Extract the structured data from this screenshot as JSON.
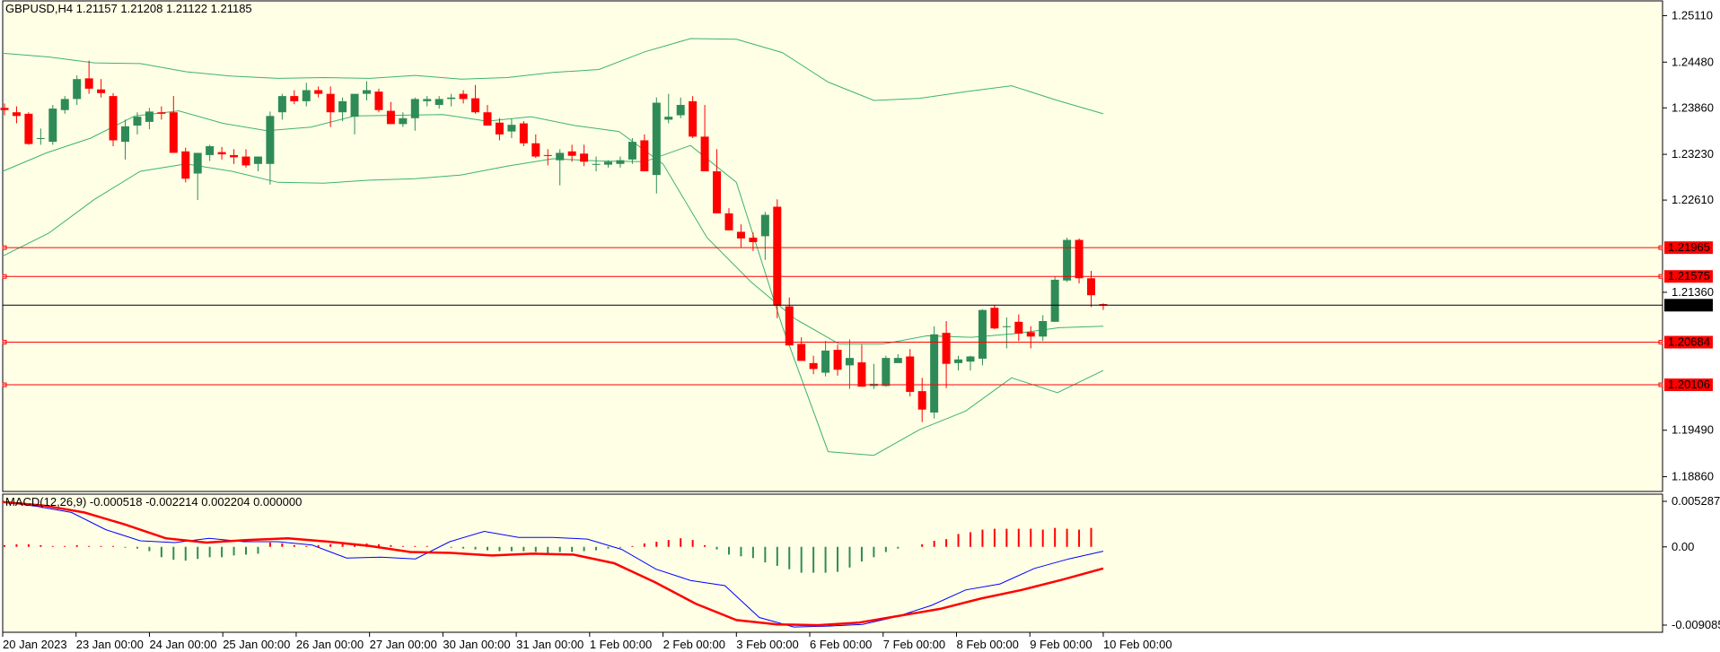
{
  "header": {
    "symbol_info": "GBPUSD,H4  1.21157 1.21208 1.21122 1.21185"
  },
  "macd_header": {
    "text": "MACD(12,26,9) -0.000518 -0.002214 0.002204 0.000000"
  },
  "colors": {
    "background": "#FFFFE6",
    "bull": "#2E8B57",
    "bear": "#FF0000",
    "bands": "#3CB371",
    "level_line": "#FF0000",
    "current_price_line": "#000000",
    "macd_line": "#0000FF",
    "signal_line": "#FF0000"
  },
  "chart_data": [
    {
      "type": "candlestick",
      "title": "GBPUSD,H4",
      "ohlc_header": [
        1.21157,
        1.21208,
        1.21122,
        1.21185
      ],
      "ylim": [
        1.1866,
        1.2531
      ],
      "y_ticks": [
        "1.25110",
        "1.24480",
        "1.23860",
        "1.23230",
        "1.22610",
        "1.21360",
        "1.19490",
        "1.18860"
      ],
      "x_ticks": [
        "20 Jan 2023",
        "23 Jan 00:00",
        "24 Jan 00:00",
        "25 Jan 00:00",
        "26 Jan 00:00",
        "27 Jan 00:00",
        "30 Jan 00:00",
        "31 Jan 00:00",
        "1 Feb 00:00",
        "2 Feb 00:00",
        "3 Feb 00:00",
        "6 Feb 00:00",
        "7 Feb 00:00",
        "8 Feb 00:00",
        "9 Feb 00:00",
        "10 Feb 00:00"
      ],
      "horizontal_levels": [
        {
          "value": 1.21965,
          "label": "1.21965"
        },
        {
          "value": 1.21575,
          "label": "1.21575"
        },
        {
          "value": 1.20684,
          "label": "1.20684"
        },
        {
          "value": 1.20106,
          "label": "1.20106"
        }
      ],
      "current_price": {
        "value": 1.21185,
        "label": "1.21185"
      },
      "candles": [
        [
          1.2386,
          1.2392,
          1.2376,
          1.2383
        ],
        [
          1.238,
          1.2388,
          1.2365,
          1.2375
        ],
        [
          1.2378,
          1.238,
          1.2336,
          1.2337
        ],
        [
          1.2345,
          1.2358,
          1.2336,
          1.2345
        ],
        [
          1.234,
          1.239,
          1.2336,
          1.2385
        ],
        [
          1.2383,
          1.2402,
          1.2378,
          1.2398
        ],
        [
          1.2398,
          1.243,
          1.239,
          1.2425
        ],
        [
          1.2426,
          1.245,
          1.2405,
          1.2412
        ],
        [
          1.2411,
          1.2425,
          1.24,
          1.2406
        ],
        [
          1.2402,
          1.2406,
          1.2334,
          1.2342
        ],
        [
          1.234,
          1.237,
          1.2316,
          1.2361
        ],
        [
          1.2362,
          1.238,
          1.235,
          1.2374
        ],
        [
          1.2367,
          1.2386,
          1.2357,
          1.2381
        ],
        [
          1.238,
          1.2388,
          1.237,
          1.2378
        ],
        [
          1.238,
          1.2402,
          1.2327,
          1.2325
        ],
        [
          1.2327,
          1.2332,
          1.2285,
          1.229
        ],
        [
          1.2297,
          1.232,
          1.2261,
          1.2325
        ],
        [
          1.2322,
          1.2336,
          1.2314,
          1.2334
        ],
        [
          1.2326,
          1.2333,
          1.2316,
          1.2323
        ],
        [
          1.2322,
          1.233,
          1.231,
          1.2319
        ],
        [
          1.232,
          1.233,
          1.2305,
          1.2308
        ],
        [
          1.231,
          1.232,
          1.23,
          1.232
        ],
        [
          1.231,
          1.2381,
          1.2282,
          1.2375
        ],
        [
          1.238,
          1.2405,
          1.237,
          1.2402
        ],
        [
          1.2402,
          1.241,
          1.2391,
          1.2395
        ],
        [
          1.2395,
          1.242,
          1.2388,
          1.241
        ],
        [
          1.241,
          1.2415,
          1.24,
          1.2405
        ],
        [
          1.2405,
          1.2415,
          1.236,
          1.238
        ],
        [
          1.238,
          1.24,
          1.2368,
          1.2395
        ],
        [
          1.2374,
          1.2402,
          1.235,
          1.2405
        ],
        [
          1.2405,
          1.2422,
          1.2396,
          1.241
        ],
        [
          1.2408,
          1.2412,
          1.238,
          1.2383
        ],
        [
          1.2382,
          1.2394,
          1.2364,
          1.2364
        ],
        [
          1.2364,
          1.238,
          1.236,
          1.2372
        ],
        [
          1.2372,
          1.24,
          1.2355,
          1.2398
        ],
        [
          1.2395,
          1.2402,
          1.2388,
          1.2398
        ],
        [
          1.239,
          1.2402,
          1.2385,
          1.2398
        ],
        [
          1.2398,
          1.2405,
          1.2388,
          1.24
        ],
        [
          1.2405,
          1.241,
          1.2392,
          1.2398
        ],
        [
          1.2399,
          1.2417,
          1.2378,
          1.238
        ],
        [
          1.238,
          1.239,
          1.2362,
          1.2362
        ],
        [
          1.2366,
          1.2372,
          1.2342,
          1.235
        ],
        [
          1.2354,
          1.2371,
          1.2345,
          1.2363
        ],
        [
          1.2365,
          1.2368,
          1.2334,
          1.2338
        ],
        [
          1.2338,
          1.235,
          1.2318,
          1.232
        ],
        [
          1.2322,
          1.233,
          1.2308,
          1.2321
        ],
        [
          1.2315,
          1.233,
          1.2281,
          1.2325
        ],
        [
          1.2327,
          1.2336,
          1.2313,
          1.2321
        ],
        [
          1.2324,
          1.2336,
          1.2307,
          1.2313
        ],
        [
          1.231,
          1.232,
          1.23,
          1.231
        ],
        [
          1.2309,
          1.2315,
          1.2305,
          1.2313
        ],
        [
          1.231,
          1.232,
          1.2305,
          1.2315
        ],
        [
          1.2316,
          1.2345,
          1.231,
          1.234
        ],
        [
          1.2342,
          1.235,
          1.2301,
          1.23
        ],
        [
          1.2295,
          1.24,
          1.227,
          1.2393
        ],
        [
          1.237,
          1.2405,
          1.2365,
          1.2374
        ],
        [
          1.2376,
          1.24,
          1.2372,
          1.239
        ],
        [
          1.2395,
          1.2402,
          1.2345,
          1.2347
        ],
        [
          1.2347,
          1.239,
          1.23,
          1.23
        ],
        [
          1.23,
          1.233,
          1.2245,
          1.2243
        ],
        [
          1.2243,
          1.225,
          1.222,
          1.222
        ],
        [
          1.2218,
          1.2228,
          1.2197,
          1.2209
        ],
        [
          1.221,
          1.2217,
          1.2192,
          1.2204
        ],
        [
          1.2212,
          1.2245,
          1.218,
          1.2241
        ],
        [
          1.2252,
          1.2262,
          1.2101,
          1.2118
        ],
        [
          1.2117,
          1.2129,
          1.2064,
          1.2064
        ],
        [
          1.2066,
          1.2075,
          1.2044,
          1.2043
        ],
        [
          1.204,
          1.205,
          1.2025,
          1.2032
        ],
        [
          1.2027,
          1.207,
          1.2022,
          1.2057
        ],
        [
          1.2058,
          1.2065,
          1.2023,
          1.2031
        ],
        [
          1.2037,
          1.2072,
          1.2005,
          1.2047
        ],
        [
          1.2041,
          1.2065,
          1.2011,
          1.2008
        ],
        [
          1.2009,
          1.2039,
          1.2005,
          1.2012
        ],
        [
          1.2009,
          1.205,
          1.2008,
          1.2047
        ],
        [
          1.204,
          1.2052,
          1.2041,
          1.2047
        ],
        [
          1.2049,
          1.2059,
          1.1995,
          1.2001
        ],
        [
          1.2002,
          1.202,
          1.196,
          1.1977
        ],
        [
          1.1973,
          1.209,
          1.1965,
          1.2079
        ],
        [
          1.2081,
          1.2097,
          1.2006,
          1.2039
        ],
        [
          1.204,
          1.205,
          1.203,
          1.2045
        ],
        [
          1.2042,
          1.205,
          1.203,
          1.2049
        ],
        [
          1.2046,
          1.2113,
          1.2037,
          1.2112
        ],
        [
          1.2115,
          1.2119,
          1.2086,
          1.2087
        ],
        [
          1.209,
          1.2102,
          1.206,
          1.209
        ],
        [
          1.2096,
          1.2106,
          1.207,
          1.208
        ],
        [
          1.2082,
          1.209,
          1.206,
          1.2076
        ],
        [
          1.2076,
          1.2105,
          1.207,
          1.2097
        ],
        [
          1.2096,
          1.2157,
          1.2096,
          1.2153
        ],
        [
          1.2152,
          1.221,
          1.215,
          1.2207
        ],
        [
          1.2207,
          1.2209,
          1.2148,
          1.2155
        ],
        [
          1.2155,
          1.2165,
          1.2116,
          1.2132
        ],
        [
          1.212,
          1.2121,
          1.2112,
          1.2118
        ]
      ],
      "bollinger_upper": [
        1.246,
        1.2455,
        1.2447,
        1.2446,
        1.2435,
        1.2429,
        1.2426,
        1.2427,
        1.2426,
        1.243,
        1.2425,
        1.2427,
        1.2434,
        1.2438,
        1.2462,
        1.248,
        1.2479,
        1.2461,
        1.2421,
        1.2396,
        1.2399,
        1.2408,
        1.2416,
        1.2396,
        1.2378
      ],
      "bollinger_middle": [
        1.23,
        1.2325,
        1.2345,
        1.2375,
        1.2382,
        1.2365,
        1.2355,
        1.236,
        1.2375,
        1.2376,
        1.2377,
        1.2368,
        1.2374,
        1.2362,
        1.2354,
        1.231,
        1.221,
        1.215,
        1.21,
        1.2066,
        1.2066,
        1.2077,
        1.2075,
        1.208,
        1.2088,
        1.209
      ],
      "bollinger_lower": [
        1.2185,
        1.2216,
        1.2262,
        1.23,
        1.231,
        1.23,
        1.2285,
        1.2284,
        1.2288,
        1.229,
        1.2295,
        1.2307,
        1.2317,
        1.2314,
        1.2313,
        1.2335,
        1.2285,
        1.209,
        1.192,
        1.1915,
        1.195,
        1.1975,
        1.202,
        1.2,
        1.203
      ]
    },
    {
      "type": "macd",
      "title": "MACD(12,26,9)",
      "values_header": [
        -0.000518,
        -0.002214,
        0.002204,
        0.0
      ],
      "ylim": [
        -0.009085,
        0.005287
      ],
      "y_ticks": [
        "0.005287",
        "0.00",
        "-0.009085"
      ],
      "histogram": [
        0.0002,
        0.0003,
        0.0003,
        0.0002,
        0.0001,
        0.0001,
        0.0002,
        0.0001,
        0.0001,
        0.0001,
        -0.0001,
        -0.0002,
        -0.0005,
        -0.0012,
        -0.0015,
        -0.0016,
        -0.0014,
        -0.0012,
        -0.0012,
        -0.001,
        -0.0009,
        -0.0008,
        0.0005,
        0.0004,
        0.0002,
        0.0001,
        0.0002,
        0.0003,
        0.0003,
        0.0004,
        0.0004,
        0.0003,
        0.0002,
        0.0001,
        0.0001,
        0.0001,
        0.0,
        -0.0001,
        -0.0002,
        -0.0003,
        -0.0004,
        -0.0005,
        -0.0005,
        -0.0005,
        -0.0006,
        -0.0007,
        -0.0006,
        -0.0006,
        -0.0005,
        -0.0004,
        -0.0002,
        -0.0001,
        0.0001,
        0.0004,
        0.0006,
        0.0008,
        0.001,
        0.0008,
        0.0002,
        -0.0003,
        -0.0009,
        -0.0011,
        -0.0013,
        -0.0018,
        -0.0022,
        -0.0026,
        -0.003,
        -0.003,
        -0.003,
        -0.0029,
        -0.0024,
        -0.0017,
        -0.0012,
        -0.0006,
        -0.0002,
        0.0,
        0.0003,
        0.0007,
        0.0009,
        0.0015,
        0.0017,
        0.002,
        0.0021,
        0.0021,
        0.0021,
        0.0021,
        0.002,
        0.0022,
        0.0021,
        0.002,
        0.0022
      ],
      "macd_line": [
        0.0052,
        0.0047,
        0.004,
        0.002,
        0.0007,
        0.0005,
        0.001,
        0.0006,
        0.0006,
        0.0002,
        -0.0013,
        -0.0012,
        -0.0014,
        0.0006,
        0.0018,
        0.0011,
        0.0011,
        0.0009,
        -0.0003,
        -0.0026,
        -0.0039,
        -0.0045,
        -0.0082,
        -0.0093,
        -0.0092,
        -0.009,
        -0.0081,
        -0.0068,
        -0.005,
        -0.0043,
        -0.0025,
        -0.0014,
        -0.0005
      ],
      "signal_line": [
        0.0052,
        0.0048,
        0.004,
        0.0026,
        0.001,
        0.0005,
        0.0008,
        0.001,
        0.0006,
        0.0001,
        -0.0006,
        -0.0007,
        -0.001,
        -0.0008,
        -0.0009,
        -0.0019,
        -0.0041,
        -0.0066,
        -0.0085,
        -0.009,
        -0.0091,
        -0.0088,
        -0.008,
        -0.0072,
        -0.006,
        -0.005,
        -0.0038,
        -0.0025
      ]
    }
  ]
}
